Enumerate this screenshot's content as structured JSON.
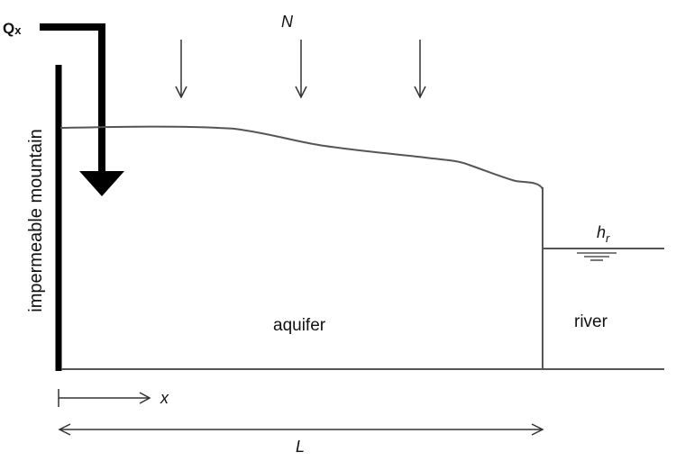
{
  "labels": {
    "qx_main": "Q",
    "qx_sub": "x",
    "recharge": "N",
    "mountain": "impermeable mountain",
    "aquifer": "aquifer",
    "river": "river",
    "river_head_main": "h",
    "river_head_sub": "r",
    "x_axis": "x",
    "length": "L"
  },
  "colors": {
    "ink": "#111111",
    "line": "#555555",
    "background": "#ffffff"
  }
}
